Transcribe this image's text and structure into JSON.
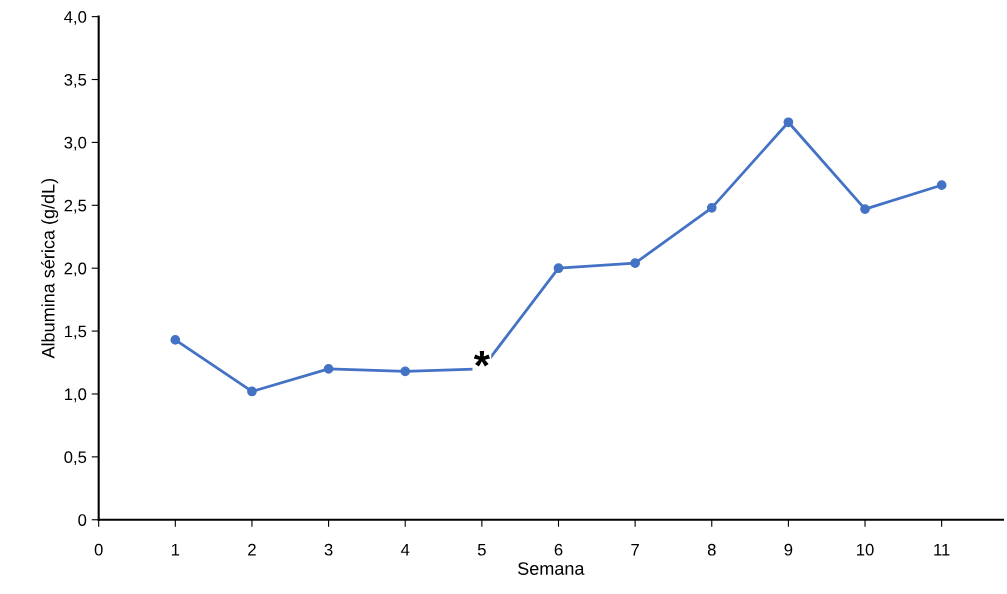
{
  "chart_data": {
    "type": "line",
    "xlabel": "Semana",
    "ylabel": "Albumina sérica (g/dL)",
    "x": [
      1,
      2,
      3,
      4,
      5,
      6,
      7,
      8,
      9,
      10,
      11
    ],
    "series": [
      {
        "color": "#4472c4",
        "values": [
          1.43,
          1.02,
          1.2,
          1.18,
          1.2,
          2.0,
          2.04,
          2.48,
          3.16,
          2.47,
          2.66
        ]
      }
    ],
    "xlim": [
      0,
      11.8
    ],
    "xticks": [
      0,
      1,
      2,
      3,
      4,
      5,
      6,
      7,
      8,
      9,
      10,
      11
    ],
    "ylim": [
      0,
      4.0
    ],
    "yticks": [
      0,
      {
        "value": 0.5,
        "label": "0,5"
      },
      {
        "value": 1.0,
        "label": "1,0"
      },
      {
        "value": 1.5,
        "label": "1,5"
      },
      {
        "value": 2.0,
        "label": "2,0"
      },
      {
        "value": 2.5,
        "label": "2,5"
      },
      {
        "value": 3.0,
        "label": "3,0"
      },
      {
        "value": 3.5,
        "label": "3,5"
      },
      {
        "value": 4.0,
        "label": "4,0"
      }
    ],
    "annotations": [
      {
        "text": "*",
        "x": 5,
        "y": 1.2
      }
    ],
    "marker": "circle",
    "line_style": "solid",
    "grid": false,
    "legend": false
  }
}
